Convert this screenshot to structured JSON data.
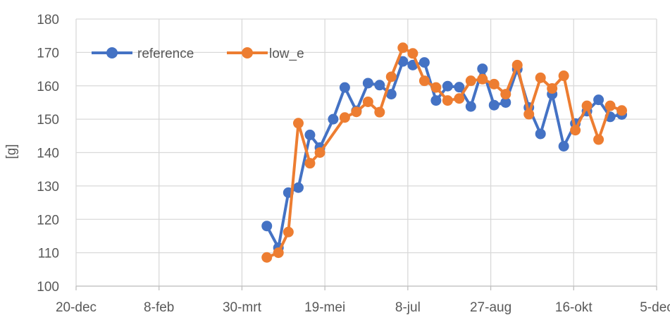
{
  "chart_data": {
    "type": "line",
    "ylabel": "[g]",
    "ylim": [
      100,
      180
    ],
    "yticks": [
      100,
      110,
      120,
      130,
      140,
      150,
      160,
      170,
      180
    ],
    "xlim": [
      "2021-12-20",
      "2022-12-05"
    ],
    "xticks": [
      {
        "date": "2021-12-20",
        "label": "20-dec"
      },
      {
        "date": "2022-02-08",
        "label": "8-feb"
      },
      {
        "date": "2022-03-30",
        "label": "30-mrt"
      },
      {
        "date": "2022-05-19",
        "label": "19-mei"
      },
      {
        "date": "2022-07-08",
        "label": "8-jul"
      },
      {
        "date": "2022-08-27",
        "label": "27-aug"
      },
      {
        "date": "2022-10-16",
        "label": "16-okt"
      },
      {
        "date": "2022-12-05",
        "label": "5-dec"
      }
    ],
    "grid": "vertical and horizontal",
    "legend": "top-left",
    "series": [
      {
        "name": "reference",
        "color": "#4472C4",
        "points": [
          {
            "x": "2022-04-14",
            "y": 118
          },
          {
            "x": "2022-04-21",
            "y": 111.5
          },
          {
            "x": "2022-04-27",
            "y": 128
          },
          {
            "x": "2022-05-03",
            "y": 129.5
          },
          {
            "x": "2022-05-10",
            "y": 145.3
          },
          {
            "x": "2022-05-16",
            "y": 141.5
          },
          {
            "x": "2022-05-24",
            "y": 150
          },
          {
            "x": "2022-05-31",
            "y": 159.5
          },
          {
            "x": "2022-06-07",
            "y": 152.5
          },
          {
            "x": "2022-06-14",
            "y": 160.8
          },
          {
            "x": "2022-06-21",
            "y": 160.2
          },
          {
            "x": "2022-06-28",
            "y": 157.5
          },
          {
            "x": "2022-07-05",
            "y": 167.3
          },
          {
            "x": "2022-07-11",
            "y": 166.2
          },
          {
            "x": "2022-07-18",
            "y": 167
          },
          {
            "x": "2022-07-25",
            "y": 155.6
          },
          {
            "x": "2022-08-01",
            "y": 159.9
          },
          {
            "x": "2022-08-08",
            "y": 159.6
          },
          {
            "x": "2022-08-15",
            "y": 153.8
          },
          {
            "x": "2022-08-22",
            "y": 165.1
          },
          {
            "x": "2022-08-29",
            "y": 154.2
          },
          {
            "x": "2022-09-05",
            "y": 155
          },
          {
            "x": "2022-09-12",
            "y": 165
          },
          {
            "x": "2022-09-19",
            "y": 153.5
          },
          {
            "x": "2022-09-26",
            "y": 145.6
          },
          {
            "x": "2022-10-03",
            "y": 157.5
          },
          {
            "x": "2022-10-10",
            "y": 141.9
          },
          {
            "x": "2022-10-17",
            "y": 148.7
          },
          {
            "x": "2022-10-24",
            "y": 152.4
          },
          {
            "x": "2022-10-31",
            "y": 155.8
          },
          {
            "x": "2022-11-07",
            "y": 150.7
          },
          {
            "x": "2022-11-14",
            "y": 151.4
          }
        ]
      },
      {
        "name": "low_e",
        "color": "#ED7D31",
        "points": [
          {
            "x": "2022-04-14",
            "y": 108.6
          },
          {
            "x": "2022-04-21",
            "y": 110
          },
          {
            "x": "2022-04-27",
            "y": 116.2
          },
          {
            "x": "2022-05-03",
            "y": 148.8
          },
          {
            "x": "2022-05-10",
            "y": 136.8
          },
          {
            "x": "2022-05-16",
            "y": 140
          },
          {
            "x": "2022-05-31",
            "y": 150.5
          },
          {
            "x": "2022-06-07",
            "y": 152.2
          },
          {
            "x": "2022-06-14",
            "y": 155.2
          },
          {
            "x": "2022-06-21",
            "y": 152.1
          },
          {
            "x": "2022-06-28",
            "y": 162.7
          },
          {
            "x": "2022-07-05",
            "y": 171.4
          },
          {
            "x": "2022-07-11",
            "y": 169.7
          },
          {
            "x": "2022-07-18",
            "y": 161.5
          },
          {
            "x": "2022-07-25",
            "y": 159.5
          },
          {
            "x": "2022-08-01",
            "y": 155.6
          },
          {
            "x": "2022-08-08",
            "y": 156.2
          },
          {
            "x": "2022-08-15",
            "y": 161.5
          },
          {
            "x": "2022-08-22",
            "y": 162
          },
          {
            "x": "2022-08-29",
            "y": 160.5
          },
          {
            "x": "2022-09-05",
            "y": 157.5
          },
          {
            "x": "2022-09-12",
            "y": 166.2
          },
          {
            "x": "2022-09-19",
            "y": 151.5
          },
          {
            "x": "2022-09-26",
            "y": 162.4
          },
          {
            "x": "2022-10-03",
            "y": 159.2
          },
          {
            "x": "2022-10-10",
            "y": 163
          },
          {
            "x": "2022-10-17",
            "y": 146.7
          },
          {
            "x": "2022-10-24",
            "y": 154
          },
          {
            "x": "2022-10-31",
            "y": 143.9
          },
          {
            "x": "2022-11-07",
            "y": 154
          },
          {
            "x": "2022-11-14",
            "y": 152.6
          }
        ]
      }
    ]
  }
}
